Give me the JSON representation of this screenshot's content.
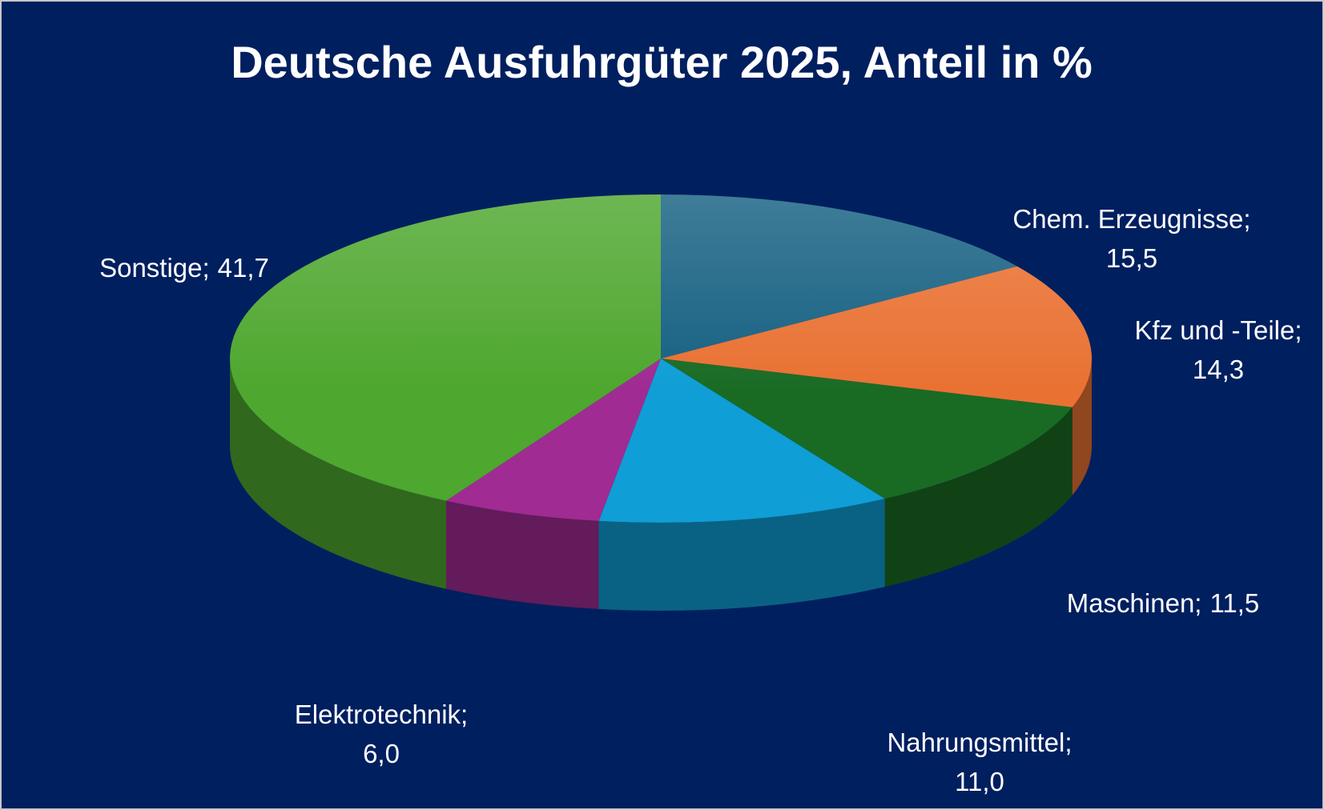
{
  "chart_data": {
    "type": "pie3d",
    "title": "Deutsche Ausfuhrgüter 2025, Anteil in %",
    "categories": [
      "Chem. Erzeugnisse;",
      "Kfz und -Teile;",
      "Maschinen;",
      "Nahrungsmittel;",
      "Elektrotechnik;",
      "Sonstige;"
    ],
    "values": [
      15.5,
      14.3,
      11.5,
      11.0,
      6.0,
      41.7
    ],
    "value_labels": [
      "15,5",
      "14,3",
      "11,5",
      "11,0",
      "6,0",
      "41,7"
    ],
    "colors": [
      "#156082",
      "#e97132",
      "#196b24",
      "#0f9ed5",
      "#a02b93",
      "#4ea72e"
    ]
  }
}
